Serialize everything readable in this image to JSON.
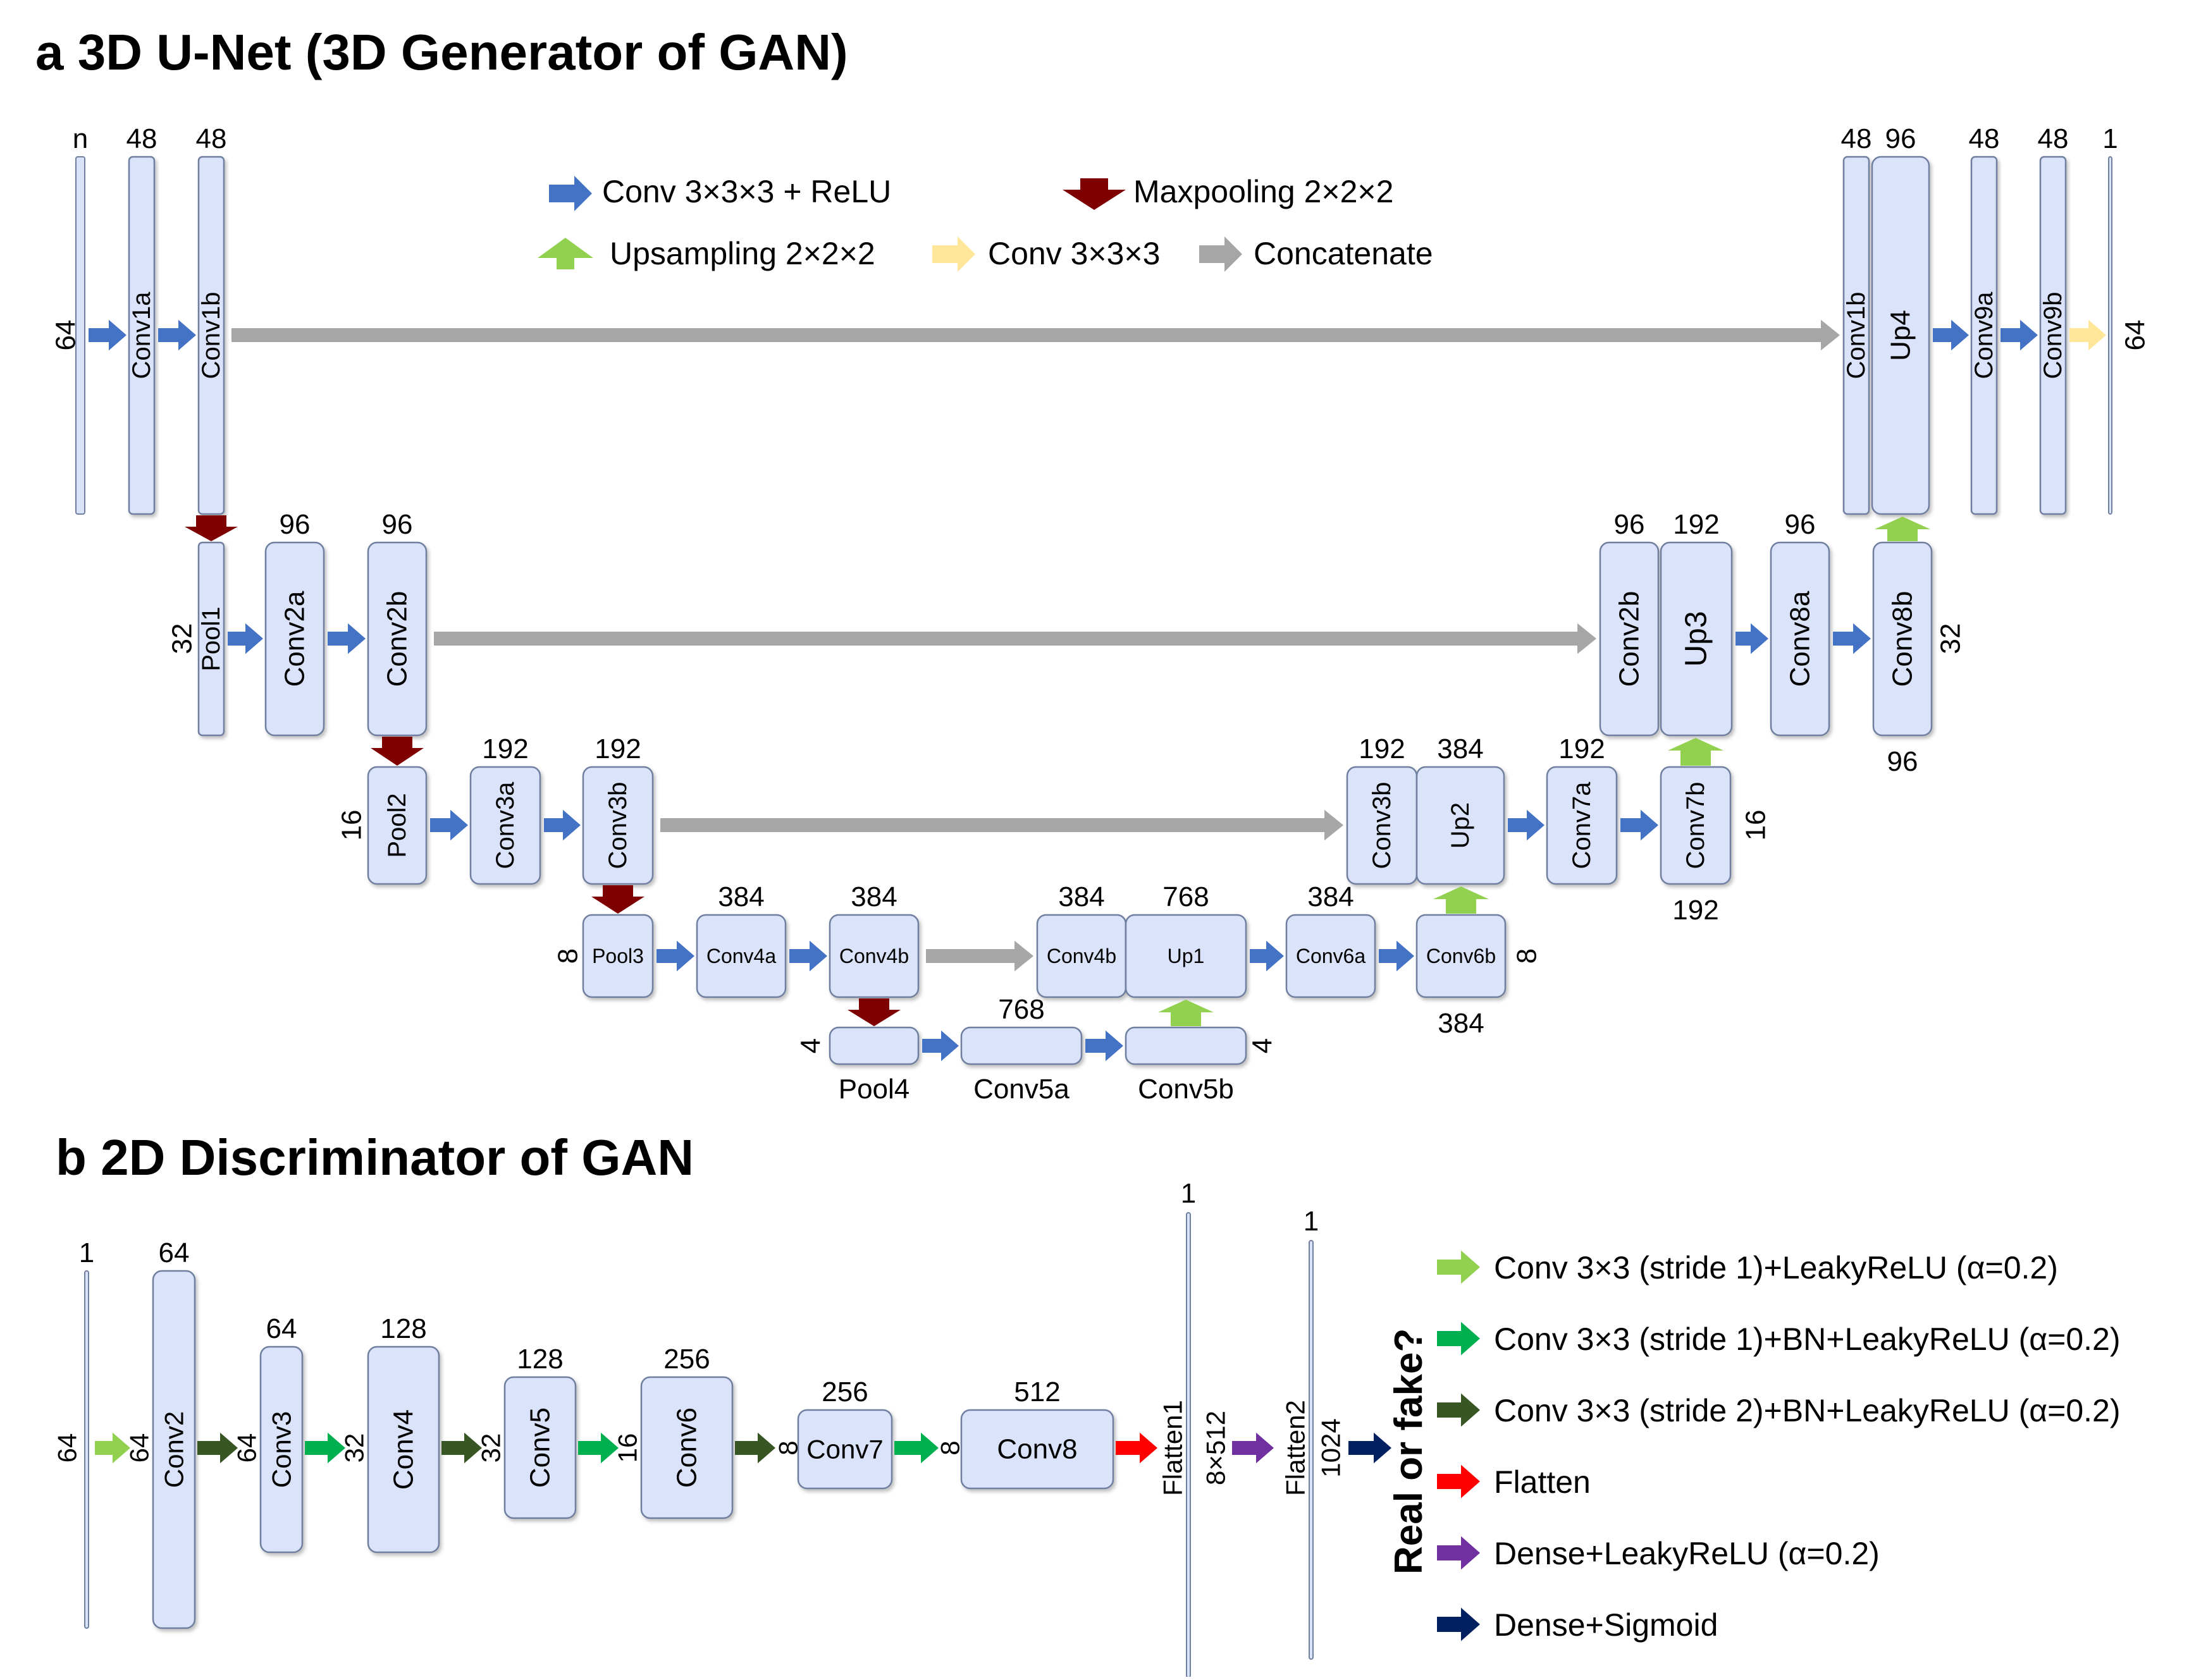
{
  "titles": {
    "a": "a 3D U-Net (3D Generator of GAN)",
    "b": "b 2D Discriminator of GAN"
  },
  "colors": {
    "block_fill": "#dae3f9",
    "block_stroke": "#6f7f9f",
    "conv_relu": "#4472c4",
    "maxpool": "#7f0000",
    "upsample": "#92d050",
    "conv_plain": "#ffe699",
    "concat": "#a6a6a6",
    "d_conv_s1": "#92d050",
    "d_conv_s1_bn": "#00b050",
    "d_conv_s2_bn": "#375623",
    "d_flatten": "#ff0000",
    "d_dense_leaky": "#7030a0",
    "d_dense_sigmoid": "#002060"
  },
  "unet": {
    "legend": [
      {
        "key": "conv_relu",
        "label": "Conv 3×3×3 + ReLU"
      },
      {
        "key": "maxpool",
        "label": "Maxpooling 2×2×2"
      },
      {
        "key": "upsample",
        "label": "Upsampling 2×2×2"
      },
      {
        "key": "conv_plain",
        "label": "Conv 3×3×3"
      },
      {
        "key": "concat",
        "label": "Concatenate"
      }
    ],
    "blocks": {
      "input": {
        "label": "",
        "channels": "n"
      },
      "conv1a": {
        "label": "Conv1a",
        "channels": "48"
      },
      "conv1b": {
        "label": "Conv1b",
        "channels": "48"
      },
      "pool1": {
        "label": "Pool1",
        "channels": ""
      },
      "conv2a": {
        "label": "Conv2a",
        "channels": "96"
      },
      "conv2b": {
        "label": "Conv2b",
        "channels": "96"
      },
      "pool2": {
        "label": "Pool2",
        "channels": ""
      },
      "conv3a": {
        "label": "Conv3a",
        "channels": "192"
      },
      "conv3b": {
        "label": "Conv3b",
        "channels": "192"
      },
      "pool3": {
        "label": "Pool3",
        "channels": ""
      },
      "conv4a": {
        "label": "Conv4a",
        "channels": "384"
      },
      "conv4b": {
        "label": "Conv4b",
        "channels": "384"
      },
      "pool4": {
        "label": "Pool4",
        "channels": ""
      },
      "conv5a": {
        "label": "Conv5a",
        "channels": "768"
      },
      "conv5b": {
        "label": "Conv5b",
        "channels": ""
      },
      "copy4b": {
        "label": "Conv4b",
        "channels": "384"
      },
      "up1": {
        "label": "Up1",
        "channels": "768"
      },
      "conv6a": {
        "label": "Conv6a",
        "channels": "384"
      },
      "conv6b": {
        "label": "Conv6b",
        "channels": "384"
      },
      "copy3b": {
        "label": "Conv3b",
        "channels": "192"
      },
      "up2": {
        "label": "Up2",
        "channels": "384"
      },
      "conv7a": {
        "label": "Conv7a",
        "channels": "192"
      },
      "conv7b": {
        "label": "Conv7b",
        "channels": "192"
      },
      "copy2b": {
        "label": "Conv2b",
        "channels": "96"
      },
      "up3": {
        "label": "Up3",
        "channels": "192"
      },
      "conv8a": {
        "label": "Conv8a",
        "channels": "96"
      },
      "conv8b": {
        "label": "Conv8b",
        "channels": "96"
      },
      "copy1b": {
        "label": "Conv1b",
        "channels": "48"
      },
      "up4": {
        "label": "Up4",
        "channels": "96"
      },
      "conv9a": {
        "label": "Conv9a",
        "channels": "48"
      },
      "conv9b": {
        "label": "Conv9b",
        "channels": "48"
      },
      "output": {
        "label": "",
        "channels": "1"
      }
    },
    "sizes": {
      "l1_left": "64",
      "l1_right": "64",
      "l2_left": "32",
      "l2_right": "32",
      "l3_left": "16",
      "l3_right": "16",
      "l4_left": "8",
      "l4_right": "8",
      "l5_left": "4",
      "l5_right": "4"
    }
  },
  "disc": {
    "side_label": "Real or fake?",
    "legend": [
      {
        "key": "d_conv_s1",
        "label": "Conv 3×3 (stride 1)+LeakyReLU (α=0.2)"
      },
      {
        "key": "d_conv_s1_bn",
        "label": "Conv 3×3 (stride 1)+BN+LeakyReLU (α=0.2)"
      },
      {
        "key": "d_conv_s2_bn",
        "label": "Conv 3×3 (stride 2)+BN+LeakyReLU (α=0.2)"
      },
      {
        "key": "d_flatten",
        "label": "Flatten"
      },
      {
        "key": "d_dense_leaky",
        "label": "Dense+LeakyReLU (α=0.2)"
      },
      {
        "key": "d_dense_sigmoid",
        "label": "Dense+Sigmoid"
      }
    ],
    "blocks": {
      "input": {
        "label": "",
        "channels": "1",
        "size": "64"
      },
      "conv2": {
        "label": "Conv2",
        "channels": "64",
        "size": "64"
      },
      "conv3": {
        "label": "Conv3",
        "channels": "64",
        "size": "64"
      },
      "conv4": {
        "label": "Conv4",
        "channels": "128",
        "size": "32"
      },
      "conv5": {
        "label": "Conv5",
        "channels": "128",
        "size": "32"
      },
      "conv6": {
        "label": "Conv6",
        "channels": "256",
        "size": "16"
      },
      "conv7": {
        "label": "Conv7",
        "channels": "256",
        "size": "8"
      },
      "conv8": {
        "label": "Conv8",
        "channels": "512",
        "size": "8"
      },
      "flatten1": {
        "label": "Flatten1",
        "channels": "1",
        "size": "8×512"
      },
      "flatten2": {
        "label": "Flatten2",
        "channels": "1",
        "size": "1024"
      }
    }
  }
}
